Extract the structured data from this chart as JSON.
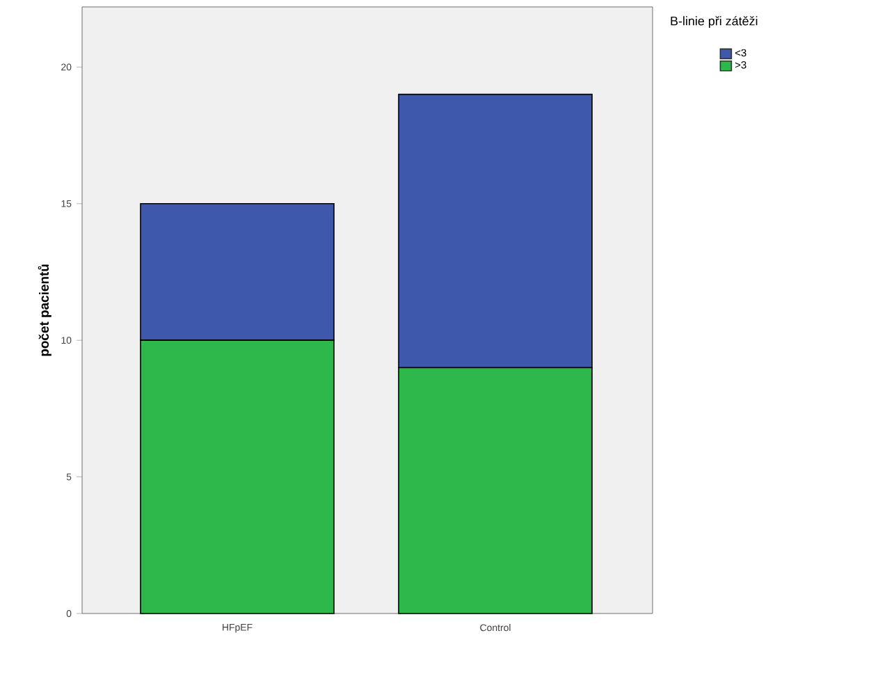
{
  "chart_data": {
    "type": "bar",
    "stacked": true,
    "categories": [
      "HFpEF",
      "Control"
    ],
    "ylabel": "počet pacientů",
    "legend_title": "B-linie při zátěži",
    "ylim": [
      0,
      22.2
    ],
    "yticks": [
      0,
      5,
      10,
      15,
      20
    ],
    "legend": "right",
    "grid": false,
    "series": [
      {
        "name": ">3",
        "color": "#2eb84b",
        "values": [
          10,
          9
        ]
      },
      {
        "name": "<3",
        "color": "#3e58ac",
        "values": [
          5,
          10
        ]
      }
    ]
  }
}
